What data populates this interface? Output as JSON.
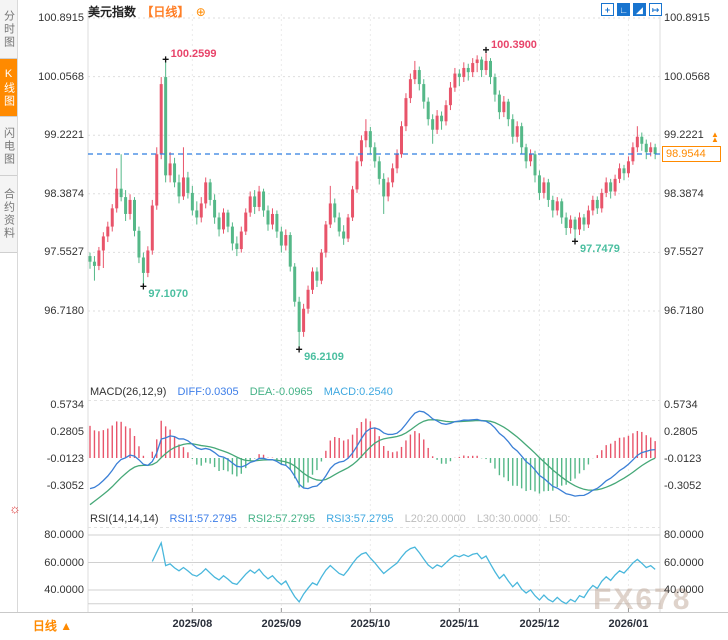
{
  "sidebar": {
    "items": [
      {
        "label": "分时图",
        "active": false
      },
      {
        "label": "K线图",
        "active": true
      },
      {
        "label": "闪电图",
        "active": false
      },
      {
        "label": "合约资料",
        "active": false
      }
    ]
  },
  "header": {
    "symbol": "美元指数",
    "period_tag": "【日线】",
    "add_icon": "⊕"
  },
  "toolbar": {
    "icons": [
      {
        "name": "crosshair-move-icon",
        "glyph": "+",
        "style": "outline"
      },
      {
        "name": "axis-fit-icon",
        "glyph": "∟",
        "style": "fill"
      },
      {
        "name": "axis-play-icon",
        "glyph": "◢",
        "style": "fill"
      },
      {
        "name": "pan-right-icon",
        "glyph": "↦",
        "style": "outline"
      }
    ]
  },
  "price_box": {
    "value": "98.9544",
    "arrows": "▲"
  },
  "macd_header": {
    "title": "MACD(26,12,9)",
    "diff": "DIFF:0.0305",
    "dea": "DEA:-0.0965",
    "macd": "MACD:0.2540"
  },
  "rsi_header": {
    "title": "RSI(14,14,14)",
    "rsi1": "RSI1:57.2795",
    "rsi2": "RSI2:57.2795",
    "rsi3": "RSI3:57.2795",
    "l20": "L20:20.0000",
    "l30": "L30:30.0000",
    "l50": "L50:"
  },
  "footer": {
    "period_label": "日线",
    "arrow": "▲"
  },
  "watermark": "FX678",
  "colors": {
    "up_candle": "#e8546a",
    "down_candle": "#55b888",
    "annotation_high": "#e8446a",
    "annotation_low": "#4bbfa0",
    "price_line": "#2e7de0",
    "accent_orange": "#ff8a00",
    "diff_line": "#3b7fd6",
    "dea_line": "#46a878",
    "rsi_line": "#49b7dc",
    "icon_blue": "#1874cf",
    "grid": "#dedede"
  },
  "chart_data": {
    "type": "candlestick",
    "title": "美元指数 日线",
    "price_axis": {
      "labels": [
        "100.8915",
        "100.0568",
        "99.2221",
        "98.3874",
        "97.5527",
        "96.7180"
      ],
      "values": [
        100.8915,
        100.0568,
        99.2221,
        98.3874,
        97.5527,
        96.718
      ]
    },
    "current_price": 98.9544,
    "x_axis": {
      "labels": [
        "2025/08",
        "2025/09",
        "2025/10",
        "2025/11",
        "2025/12",
        "2026/01"
      ],
      "tick_candle_indices": [
        23,
        43,
        63,
        83,
        101,
        121
      ]
    },
    "annotations": [
      {
        "index": 12,
        "value": 97.107,
        "text": "97.1070",
        "kind": "low"
      },
      {
        "index": 17,
        "value": 100.2599,
        "text": "100.2599",
        "kind": "high"
      },
      {
        "index": 47,
        "value": 96.2109,
        "text": "96.2109",
        "kind": "low"
      },
      {
        "index": 89,
        "value": 100.39,
        "text": "100.3900",
        "kind": "high"
      },
      {
        "index": 109,
        "value": 97.7479,
        "text": "97.7479",
        "kind": "low"
      }
    ],
    "candles": [
      [
        97.5,
        97.55,
        97.32,
        97.42
      ],
      [
        97.42,
        97.5,
        97.15,
        97.36
      ],
      [
        97.36,
        97.63,
        97.3,
        97.58
      ],
      [
        97.58,
        97.84,
        97.33,
        97.78
      ],
      [
        97.78,
        97.99,
        97.7,
        97.92
      ],
      [
        97.92,
        98.24,
        97.85,
        98.18
      ],
      [
        98.18,
        98.75,
        98.12,
        98.46
      ],
      [
        98.46,
        98.95,
        98.28,
        98.34
      ],
      [
        98.34,
        98.44,
        98.0,
        98.1
      ],
      [
        98.1,
        98.38,
        98.02,
        98.3
      ],
      [
        98.3,
        98.34,
        97.78,
        97.86
      ],
      [
        97.86,
        97.92,
        97.4,
        97.48
      ],
      [
        97.48,
        97.55,
        97.107,
        97.26
      ],
      [
        97.26,
        97.64,
        97.2,
        97.58
      ],
      [
        97.58,
        98.3,
        97.52,
        98.22
      ],
      [
        98.22,
        99.05,
        98.16,
        98.95
      ],
      [
        98.95,
        100.05,
        98.88,
        99.95
      ],
      [
        100.05,
        100.2599,
        98.55,
        98.65
      ],
      [
        98.65,
        98.98,
        98.55,
        98.82
      ],
      [
        98.82,
        98.9,
        98.48,
        98.55
      ],
      [
        98.55,
        98.66,
        98.25,
        98.35
      ],
      [
        98.35,
        99.05,
        98.3,
        98.62
      ],
      [
        98.62,
        98.7,
        98.32,
        98.4
      ],
      [
        98.4,
        98.5,
        98.08,
        98.15
      ],
      [
        98.15,
        98.28,
        97.95,
        98.05
      ],
      [
        98.05,
        98.34,
        97.98,
        98.25
      ],
      [
        98.25,
        98.62,
        98.18,
        98.55
      ],
      [
        98.55,
        98.6,
        98.22,
        98.3
      ],
      [
        98.3,
        98.38,
        97.96,
        98.05
      ],
      [
        98.05,
        98.12,
        97.78,
        97.88
      ],
      [
        97.88,
        98.18,
        97.82,
        98.12
      ],
      [
        98.12,
        98.16,
        97.84,
        97.92
      ],
      [
        97.92,
        97.98,
        97.58,
        97.68
      ],
      [
        97.68,
        97.78,
        97.5,
        97.6
      ],
      [
        97.6,
        97.92,
        97.55,
        97.85
      ],
      [
        97.85,
        98.18,
        97.8,
        98.12
      ],
      [
        98.12,
        98.42,
        98.06,
        98.35
      ],
      [
        98.35,
        98.44,
        98.1,
        98.2
      ],
      [
        98.2,
        98.5,
        98.14,
        98.42
      ],
      [
        98.42,
        98.46,
        98.06,
        98.15
      ],
      [
        98.15,
        98.22,
        97.86,
        97.95
      ],
      [
        97.95,
        98.18,
        97.88,
        98.1
      ],
      [
        98.1,
        98.15,
        97.76,
        97.85
      ],
      [
        97.85,
        97.92,
        97.55,
        97.65
      ],
      [
        97.65,
        97.88,
        97.58,
        97.8
      ],
      [
        97.8,
        97.84,
        97.28,
        97.35
      ],
      [
        97.35,
        97.4,
        96.78,
        96.85
      ],
      [
        96.85,
        96.92,
        96.2109,
        96.42
      ],
      [
        96.42,
        96.82,
        96.35,
        96.75
      ],
      [
        96.75,
        97.08,
        96.68,
        97.02
      ],
      [
        97.02,
        97.34,
        96.96,
        97.28
      ],
      [
        97.28,
        97.34,
        97.06,
        97.15
      ],
      [
        97.15,
        97.6,
        97.1,
        97.55
      ],
      [
        97.55,
        98.0,
        97.48,
        97.95
      ],
      [
        97.95,
        98.5,
        97.9,
        98.25
      ],
      [
        98.25,
        98.32,
        97.98,
        98.05
      ],
      [
        98.05,
        98.12,
        97.78,
        97.85
      ],
      [
        97.85,
        97.94,
        97.66,
        97.75
      ],
      [
        97.75,
        98.1,
        97.7,
        98.05
      ],
      [
        98.05,
        98.5,
        98.0,
        98.45
      ],
      [
        98.45,
        98.92,
        98.4,
        98.85
      ],
      [
        98.85,
        99.22,
        98.78,
        99.15
      ],
      [
        99.15,
        99.45,
        99.05,
        99.28
      ],
      [
        99.28,
        99.34,
        98.96,
        99.05
      ],
      [
        99.05,
        99.12,
        98.76,
        98.85
      ],
      [
        98.85,
        98.92,
        98.52,
        98.6
      ],
      [
        98.6,
        98.68,
        98.1,
        98.35
      ],
      [
        98.35,
        98.62,
        98.28,
        98.55
      ],
      [
        98.55,
        98.82,
        98.48,
        98.75
      ],
      [
        98.75,
        99.02,
        98.68,
        98.95
      ],
      [
        98.95,
        99.42,
        98.9,
        99.35
      ],
      [
        99.35,
        99.82,
        99.28,
        99.75
      ],
      [
        99.75,
        100.1,
        99.68,
        100.02
      ],
      [
        100.02,
        100.28,
        99.95,
        100.15
      ],
      [
        100.15,
        100.2,
        99.86,
        99.95
      ],
      [
        99.95,
        100.02,
        99.6,
        99.7
      ],
      [
        99.7,
        99.76,
        99.36,
        99.45
      ],
      [
        99.45,
        99.52,
        99.1,
        99.3
      ],
      [
        99.3,
        99.58,
        99.24,
        99.5
      ],
      [
        99.5,
        99.56,
        99.3,
        99.42
      ],
      [
        99.42,
        99.72,
        99.36,
        99.65
      ],
      [
        99.65,
        99.98,
        99.58,
        99.9
      ],
      [
        99.9,
        100.18,
        99.84,
        100.1
      ],
      [
        100.1,
        100.16,
        99.92,
        100.05
      ],
      [
        100.05,
        100.26,
        99.98,
        100.18
      ],
      [
        100.18,
        100.24,
        100.0,
        100.12
      ],
      [
        100.12,
        100.32,
        100.05,
        100.25
      ],
      [
        100.25,
        100.36,
        100.12,
        100.3
      ],
      [
        100.3,
        100.34,
        100.05,
        100.15
      ],
      [
        100.15,
        100.39,
        100.08,
        100.28
      ],
      [
        100.28,
        100.32,
        99.95,
        100.05
      ],
      [
        100.05,
        100.1,
        99.7,
        99.8
      ],
      [
        99.8,
        99.86,
        99.45,
        99.55
      ],
      [
        99.55,
        99.78,
        99.48,
        99.7
      ],
      [
        99.7,
        99.74,
        99.35,
        99.45
      ],
      [
        99.45,
        99.52,
        99.1,
        99.2
      ],
      [
        99.2,
        99.42,
        99.12,
        99.35
      ],
      [
        99.35,
        99.4,
        98.95,
        99.05
      ],
      [
        99.05,
        99.1,
        98.75,
        98.85
      ],
      [
        98.85,
        99.02,
        98.78,
        98.95
      ],
      [
        98.95,
        99.0,
        98.55,
        98.65
      ],
      [
        98.65,
        98.72,
        98.3,
        98.4
      ],
      [
        98.4,
        98.62,
        98.32,
        98.55
      ],
      [
        98.55,
        98.6,
        98.2,
        98.3
      ],
      [
        98.3,
        98.36,
        98.05,
        98.15
      ],
      [
        98.15,
        98.34,
        98.08,
        98.28
      ],
      [
        98.28,
        98.32,
        97.96,
        98.05
      ],
      [
        98.05,
        98.12,
        97.8,
        97.9
      ],
      [
        97.9,
        98.08,
        97.82,
        98.02
      ],
      [
        98.02,
        98.06,
        97.7479,
        97.88
      ],
      [
        97.88,
        98.12,
        97.8,
        98.05
      ],
      [
        98.05,
        98.1,
        97.86,
        97.95
      ],
      [
        97.95,
        98.22,
        97.9,
        98.15
      ],
      [
        98.15,
        98.36,
        98.08,
        98.3
      ],
      [
        98.3,
        98.35,
        98.1,
        98.18
      ],
      [
        98.18,
        98.46,
        98.12,
        98.4
      ],
      [
        98.4,
        98.62,
        98.34,
        98.55
      ],
      [
        98.55,
        98.6,
        98.32,
        98.42
      ],
      [
        98.42,
        98.66,
        98.36,
        98.6
      ],
      [
        98.6,
        98.82,
        98.54,
        98.75
      ],
      [
        98.75,
        98.8,
        98.58,
        98.68
      ],
      [
        98.68,
        98.92,
        98.62,
        98.85
      ],
      [
        98.85,
        99.12,
        98.8,
        99.05
      ],
      [
        99.05,
        99.35,
        98.98,
        99.2
      ],
      [
        99.2,
        99.26,
        99.0,
        99.1
      ],
      [
        99.1,
        99.16,
        98.88,
        98.98
      ],
      [
        98.98,
        99.12,
        98.92,
        99.05
      ],
      [
        99.05,
        99.1,
        98.88,
        98.9544
      ]
    ],
    "macd": {
      "type": "macd",
      "params": [
        26,
        12,
        9
      ],
      "readout": {
        "diff": 0.0305,
        "dea": -0.0965,
        "macd": 0.254
      },
      "axis": {
        "labels": [
          "0.5734",
          "0.2805",
          "-0.0123",
          "-0.3052"
        ],
        "values": [
          0.5734,
          0.2805,
          -0.0123,
          -0.3052
        ]
      }
    },
    "rsi": {
      "type": "line",
      "params": [
        14,
        14,
        14
      ],
      "readout": {
        "rsi1": 57.2795,
        "rsi2": 57.2795,
        "rsi3": 57.2795,
        "l20": 20.0,
        "l30": 30.0
      },
      "axis": {
        "labels": [
          "80.0000",
          "60.0000",
          "40.0000"
        ],
        "values": [
          80,
          60,
          40
        ]
      },
      "ref_lines": [
        80,
        60,
        40,
        30
      ]
    }
  }
}
